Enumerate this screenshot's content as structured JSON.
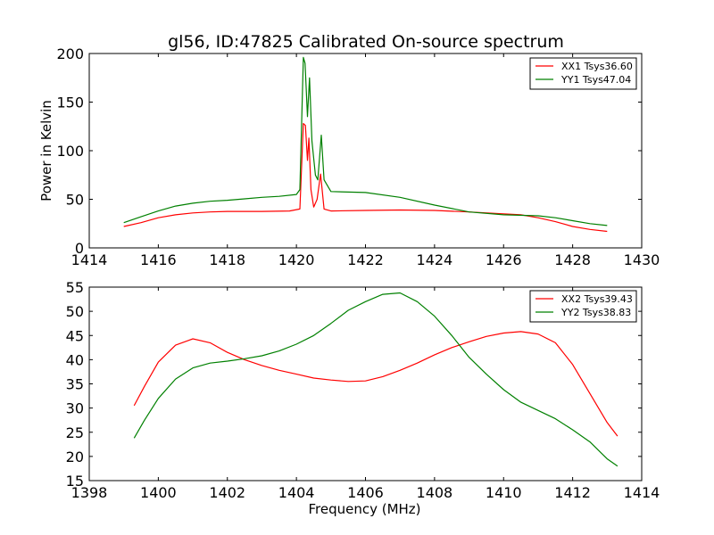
{
  "title": "gl56, ID:47825 Calibrated On-source spectrum",
  "chart_data": [
    {
      "type": "line",
      "title": "gl56, ID:47825 Calibrated On-source spectrum",
      "xlabel": "",
      "ylabel": "Power in Kelvin",
      "xlim": [
        1414,
        1430
      ],
      "ylim": [
        0,
        200
      ],
      "xticks": [
        1414,
        1416,
        1418,
        1420,
        1422,
        1424,
        1426,
        1428,
        1430
      ],
      "yticks": [
        0,
        50,
        100,
        150,
        200
      ],
      "legend_position": "top-right",
      "series": [
        {
          "name": "XX1 Tsys36.60",
          "color": "#ff0000",
          "points": [
            [
              1415.0,
              22
            ],
            [
              1415.5,
              26
            ],
            [
              1416.0,
              31
            ],
            [
              1416.5,
              34
            ],
            [
              1417.0,
              36
            ],
            [
              1417.5,
              37
            ],
            [
              1418.0,
              37.5
            ],
            [
              1419.0,
              37.5
            ],
            [
              1419.8,
              38
            ],
            [
              1420.1,
              40
            ],
            [
              1420.2,
              128
            ],
            [
              1420.26,
              126
            ],
            [
              1420.32,
              90
            ],
            [
              1420.36,
              113
            ],
            [
              1420.42,
              60
            ],
            [
              1420.5,
              42
            ],
            [
              1420.6,
              50
            ],
            [
              1420.7,
              76
            ],
            [
              1420.8,
              40
            ],
            [
              1421.0,
              38
            ],
            [
              1422.0,
              38.5
            ],
            [
              1423.0,
              39
            ],
            [
              1424.0,
              38.5
            ],
            [
              1425.0,
              37
            ],
            [
              1426.0,
              35
            ],
            [
              1426.5,
              34
            ],
            [
              1427.0,
              31
            ],
            [
              1427.5,
              27
            ],
            [
              1428.0,
              22
            ],
            [
              1428.5,
              19
            ],
            [
              1429.0,
              17
            ]
          ]
        },
        {
          "name": "YY1 Tsys47.04",
          "color": "#008000",
          "points": [
            [
              1415.0,
              26
            ],
            [
              1415.5,
              32
            ],
            [
              1416.0,
              38
            ],
            [
              1416.5,
              43
            ],
            [
              1417.0,
              46
            ],
            [
              1417.5,
              48
            ],
            [
              1418.0,
              49
            ],
            [
              1418.5,
              50.5
            ],
            [
              1419.0,
              52
            ],
            [
              1419.5,
              53
            ],
            [
              1420.0,
              55
            ],
            [
              1420.1,
              60
            ],
            [
              1420.2,
              196
            ],
            [
              1420.25,
              190
            ],
            [
              1420.32,
              135
            ],
            [
              1420.38,
              175
            ],
            [
              1420.45,
              110
            ],
            [
              1420.55,
              75
            ],
            [
              1420.62,
              70
            ],
            [
              1420.72,
              116
            ],
            [
              1420.8,
              70
            ],
            [
              1421.0,
              58
            ],
            [
              1422.0,
              57
            ],
            [
              1423.0,
              52
            ],
            [
              1424.0,
              44
            ],
            [
              1425.0,
              37
            ],
            [
              1426.0,
              34
            ],
            [
              1427.0,
              33
            ],
            [
              1427.5,
              31
            ],
            [
              1428.0,
              28
            ],
            [
              1428.5,
              25
            ],
            [
              1429.0,
              23
            ]
          ]
        }
      ]
    },
    {
      "type": "line",
      "title": "",
      "xlabel": "Frequency (MHz)",
      "ylabel": "",
      "xlim": [
        1398,
        1414
      ],
      "ylim": [
        15,
        55
      ],
      "xticks": [
        1398,
        1400,
        1402,
        1404,
        1406,
        1408,
        1410,
        1412,
        1414
      ],
      "yticks": [
        15,
        20,
        25,
        30,
        35,
        40,
        45,
        50,
        55
      ],
      "legend_position": "top-right",
      "series": [
        {
          "name": "XX2 Tsys39.43",
          "color": "#ff0000",
          "points": [
            [
              1399.3,
              30.5
            ],
            [
              1399.6,
              34.5
            ],
            [
              1400.0,
              39.5
            ],
            [
              1400.5,
              43
            ],
            [
              1401.0,
              44.3
            ],
            [
              1401.5,
              43.5
            ],
            [
              1402.0,
              41.5
            ],
            [
              1402.5,
              40
            ],
            [
              1403.0,
              38.8
            ],
            [
              1403.5,
              37.8
            ],
            [
              1404.0,
              37
            ],
            [
              1404.5,
              36.2
            ],
            [
              1405.0,
              35.8
            ],
            [
              1405.5,
              35.5
            ],
            [
              1406.0,
              35.6
            ],
            [
              1406.5,
              36.5
            ],
            [
              1407.0,
              37.8
            ],
            [
              1407.5,
              39.3
            ],
            [
              1408.0,
              41
            ],
            [
              1408.5,
              42.5
            ],
            [
              1409.0,
              43.7
            ],
            [
              1409.5,
              44.8
            ],
            [
              1410.0,
              45.5
            ],
            [
              1410.5,
              45.8
            ],
            [
              1411.0,
              45.3
            ],
            [
              1411.5,
              43.5
            ],
            [
              1412.0,
              39
            ],
            [
              1412.5,
              33
            ],
            [
              1413.0,
              27
            ],
            [
              1413.3,
              24.2
            ]
          ]
        },
        {
          "name": "YY2 Tsys38.83",
          "color": "#008000",
          "points": [
            [
              1399.3,
              23.8
            ],
            [
              1399.6,
              27.5
            ],
            [
              1400.0,
              32
            ],
            [
              1400.5,
              36
            ],
            [
              1401.0,
              38.3
            ],
            [
              1401.5,
              39.3
            ],
            [
              1402.0,
              39.7
            ],
            [
              1402.5,
              40.2
            ],
            [
              1403.0,
              40.8
            ],
            [
              1403.5,
              41.8
            ],
            [
              1404.0,
              43.2
            ],
            [
              1404.5,
              45
            ],
            [
              1405.0,
              47.5
            ],
            [
              1405.5,
              50.2
            ],
            [
              1406.0,
              52
            ],
            [
              1406.5,
              53.5
            ],
            [
              1407.0,
              53.8
            ],
            [
              1407.5,
              52
            ],
            [
              1408.0,
              49
            ],
            [
              1408.5,
              45
            ],
            [
              1409.0,
              40.5
            ],
            [
              1409.5,
              37
            ],
            [
              1410.0,
              33.8
            ],
            [
              1410.5,
              31.2
            ],
            [
              1411.0,
              29.5
            ],
            [
              1411.5,
              27.8
            ],
            [
              1412.0,
              25.5
            ],
            [
              1412.5,
              23
            ],
            [
              1413.0,
              19.5
            ],
            [
              1413.3,
              18
            ]
          ]
        }
      ]
    }
  ]
}
